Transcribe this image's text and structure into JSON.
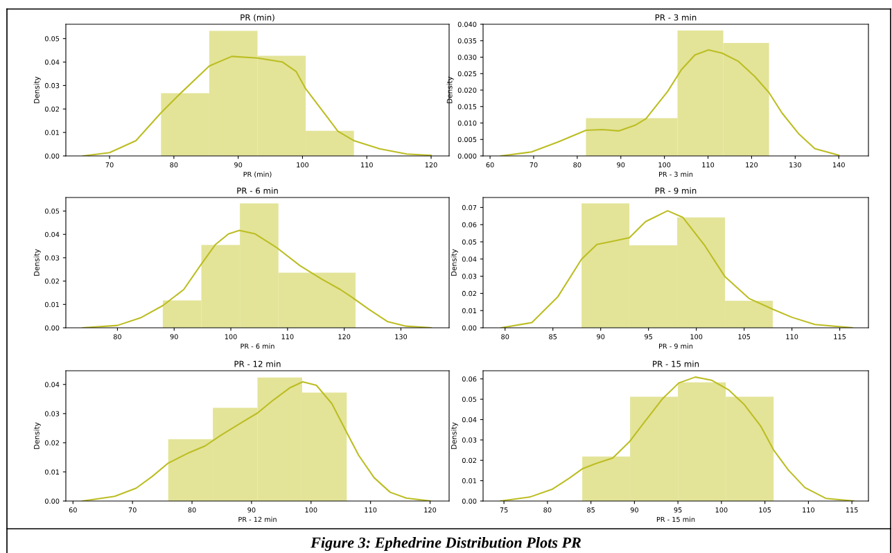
{
  "chart_data": [
    {
      "type": "histogram",
      "title": "PR (min)",
      "xlabel": "PR (min)",
      "ylabel": "Density",
      "color": "#e3e498",
      "bins": [
        78,
        85.5,
        93,
        100.5,
        108
      ],
      "values": [
        0.0267,
        0.0533,
        0.0427,
        0.0107
      ],
      "xlim": [
        63.2,
        122.8
      ],
      "xticks": [
        70,
        80,
        90,
        100,
        110,
        120
      ],
      "ylim": [
        0,
        0.0561
      ],
      "yticks": [
        {
          "value": 0,
          "label": "0.00"
        },
        {
          "value": 0.01,
          "label": "0.01"
        },
        {
          "value": 0.02,
          "label": "0.02"
        },
        {
          "value": 0.03,
          "label": "0.03"
        },
        {
          "value": 0.04,
          "label": "0.04"
        },
        {
          "value": 0.05,
          "label": "0.05"
        }
      ],
      "series": [
        {
          "type": "line",
          "color": "#bcbd22",
          "x": [
            65.9,
            70,
            74.1,
            78,
            80.7,
            85.5,
            89,
            93,
            96.9,
            99,
            100.5,
            103.8,
            105.5,
            108,
            112,
            116.2,
            120
          ],
          "values": [
            0,
            0.0014,
            0.0065,
            0.0184,
            0.0258,
            0.0383,
            0.0424,
            0.0417,
            0.04,
            0.036,
            0.0286,
            0.0167,
            0.0105,
            0.0065,
            0.003,
            0.0008,
            0.0002
          ]
        }
      ]
    },
    {
      "type": "histogram",
      "title": "PR - 3 min",
      "xlabel": "PR - 3 min",
      "ylabel": "Density",
      "color": "#e3e498",
      "bins": [
        82,
        103,
        113.5,
        124
      ],
      "values": [
        0.0115,
        0.0381,
        0.0343
      ],
      "xlim": [
        58.4,
        146.8
      ],
      "xticks": [
        60,
        70,
        80,
        90,
        100,
        110,
        120,
        130,
        140
      ],
      "ylim": [
        0,
        0.04
      ],
      "yticks": [
        {
          "value": 0,
          "label": "0.000"
        },
        {
          "value": 0.005,
          "label": "0.005"
        },
        {
          "value": 0.01,
          "label": "0.010"
        },
        {
          "value": 0.015,
          "label": "0.015"
        },
        {
          "value": 0.02,
          "label": "0.020"
        },
        {
          "value": 0.025,
          "label": "0.025"
        },
        {
          "value": 0.03,
          "label": "0.030"
        },
        {
          "value": 0.035,
          "label": "0.035"
        },
        {
          "value": 0.04,
          "label": "0.040"
        }
      ],
      "series": [
        {
          "type": "line",
          "color": "#bcbd22",
          "x": [
            62.5,
            69.5,
            75.75,
            82,
            85.75,
            89.5,
            93.25,
            95.75,
            100.75,
            103.9,
            107,
            110.1,
            113.25,
            117,
            120.75,
            124,
            127,
            130.75,
            134.5,
            140
          ],
          "values": [
            0,
            0.0012,
            0.0043,
            0.0078,
            0.008,
            0.0076,
            0.0093,
            0.0113,
            0.0196,
            0.0262,
            0.0307,
            0.0322,
            0.0312,
            0.0287,
            0.0241,
            0.0192,
            0.013,
            0.0068,
            0.0022,
            0.0002
          ]
        }
      ]
    },
    {
      "type": "histogram",
      "title": "PR - 6 min",
      "xlabel": "PR - 6 min",
      "ylabel": "Density",
      "color": "#e3e498",
      "bins": [
        88,
        94.8,
        101.6,
        108.4,
        122
      ],
      "values": [
        0.0117,
        0.0355,
        0.0533,
        0.0236
      ],
      "xlim": [
        70.9,
        138.5
      ],
      "xticks": [
        80,
        90,
        100,
        110,
        120,
        130
      ],
      "ylim": [
        0,
        0.0558
      ],
      "yticks": [
        {
          "value": 0,
          "label": "0.00"
        },
        {
          "value": 0.01,
          "label": "0.01"
        },
        {
          "value": 0.02,
          "label": "0.02"
        },
        {
          "value": 0.03,
          "label": "0.03"
        },
        {
          "value": 0.04,
          "label": "0.04"
        },
        {
          "value": 0.05,
          "label": "0.05"
        }
      ],
      "series": [
        {
          "type": "line",
          "color": "#bcbd22",
          "x": [
            73.9,
            80,
            84.2,
            88,
            91.7,
            94.6,
            97.3,
            99.6,
            101.5,
            104.3,
            108,
            112.2,
            116,
            119.3,
            121.4,
            124.4,
            127.6,
            130.9,
            135.3
          ],
          "values": [
            0,
            0.001,
            0.0044,
            0.0095,
            0.0164,
            0.0266,
            0.0357,
            0.0402,
            0.0417,
            0.0402,
            0.0345,
            0.0266,
            0.0209,
            0.0164,
            0.013,
            0.0078,
            0.0027,
            0.0007,
            0
          ]
        }
      ]
    },
    {
      "type": "histogram",
      "title": "PR - 9 min",
      "xlabel": "PR - 9 min",
      "ylabel": "Density",
      "color": "#e3e498",
      "bins": [
        88,
        93,
        98,
        103,
        108
      ],
      "values": [
        0.0724,
        0.048,
        0.0642,
        0.0157
      ],
      "xlim": [
        77.7,
        118.0
      ],
      "xticks": [
        80,
        85,
        90,
        95,
        100,
        105,
        110,
        115
      ],
      "ylim": [
        0,
        0.0758
      ],
      "yticks": [
        {
          "value": 0,
          "label": "0.00"
        },
        {
          "value": 0.01,
          "label": "0.01"
        },
        {
          "value": 0.02,
          "label": "0.02"
        },
        {
          "value": 0.03,
          "label": "0.03"
        },
        {
          "value": 0.04,
          "label": "0.04"
        },
        {
          "value": 0.05,
          "label": "0.05"
        },
        {
          "value": 0.06,
          "label": "0.06"
        },
        {
          "value": 0.07,
          "label": "0.07"
        }
      ],
      "series": [
        {
          "type": "line",
          "color": "#bcbd22",
          "x": [
            79.6,
            82.8,
            85.5,
            88,
            89.6,
            91.3,
            93,
            94.7,
            97,
            98.6,
            100.9,
            103,
            105.5,
            108,
            110,
            112.4,
            116.3
          ],
          "values": [
            0,
            0.003,
            0.0179,
            0.0399,
            0.0485,
            0.0504,
            0.0524,
            0.0618,
            0.0681,
            0.0642,
            0.0477,
            0.0297,
            0.0171,
            0.0108,
            0.0061,
            0.0019,
            0
          ]
        }
      ]
    },
    {
      "type": "histogram",
      "title": "PR - 12 min",
      "xlabel": "PR - 12 min",
      "ylabel": "Density",
      "color": "#e3e498",
      "bins": [
        76,
        83.5,
        91,
        98.5,
        106
      ],
      "values": [
        0.0212,
        0.032,
        0.0424,
        0.0372
      ],
      "xlim": [
        58.8,
        123.2
      ],
      "xticks": [
        60,
        70,
        80,
        90,
        100,
        110,
        120
      ],
      "ylim": [
        0,
        0.0447
      ],
      "yticks": [
        {
          "value": 0,
          "label": "0.00"
        },
        {
          "value": 0.01,
          "label": "0.01"
        },
        {
          "value": 0.02,
          "label": "0.02"
        },
        {
          "value": 0.03,
          "label": "0.03"
        },
        {
          "value": 0.04,
          "label": "0.04"
        }
      ],
      "series": [
        {
          "type": "line",
          "color": "#bcbd22",
          "x": [
            61.6,
            67,
            70.6,
            73.3,
            76,
            79.5,
            82.2,
            84.8,
            88.4,
            91,
            93.7,
            96.4,
            98.6,
            100.9,
            103.5,
            105.9,
            108,
            110.6,
            113.3,
            116,
            120
          ],
          "values": [
            0,
            0.0016,
            0.0044,
            0.0084,
            0.013,
            0.0166,
            0.0189,
            0.0225,
            0.027,
            0.0302,
            0.0347,
            0.0388,
            0.0409,
            0.0397,
            0.0334,
            0.0239,
            0.0157,
            0.008,
            0.003,
            0.001,
            0
          ]
        }
      ]
    },
    {
      "type": "histogram",
      "title": "PR - 15 min",
      "xlabel": "PR - 15 min",
      "ylabel": "Density",
      "color": "#e3e498",
      "bins": [
        84,
        89.5,
        95,
        100.5,
        106
      ],
      "values": [
        0.0219,
        0.0512,
        0.0583,
        0.0512
      ],
      "xlim": [
        72.6,
        116.9
      ],
      "xticks": [
        75,
        80,
        85,
        90,
        95,
        100,
        105,
        110,
        115
      ],
      "ylim": [
        0,
        0.064
      ],
      "yticks": [
        {
          "value": 0,
          "label": "0.00"
        },
        {
          "value": 0.01,
          "label": "0.01"
        },
        {
          "value": 0.02,
          "label": "0.02"
        },
        {
          "value": 0.03,
          "label": "0.03"
        },
        {
          "value": 0.04,
          "label": "0.04"
        },
        {
          "value": 0.05,
          "label": "0.05"
        },
        {
          "value": 0.06,
          "label": "0.06"
        }
      ],
      "annotations": [
        "Figure 3: Ephedrine Distribution Plots PR"
      ],
      "series": [
        {
          "type": "line",
          "color": "#bcbd22",
          "x": [
            74.6,
            78,
            80.6,
            82.5,
            84,
            85.6,
            87.5,
            89.4,
            91.3,
            93.2,
            95.1,
            97,
            98.9,
            100.8,
            102.6,
            104.5,
            106,
            107.7,
            109.6,
            112,
            115.2
          ],
          "values": [
            0,
            0.002,
            0.0059,
            0.0112,
            0.0158,
            0.0185,
            0.0211,
            0.029,
            0.0396,
            0.0501,
            0.058,
            0.0609,
            0.0593,
            0.0547,
            0.0475,
            0.0369,
            0.0251,
            0.0152,
            0.0066,
            0.0013,
            0
          ]
        }
      ]
    }
  ]
}
